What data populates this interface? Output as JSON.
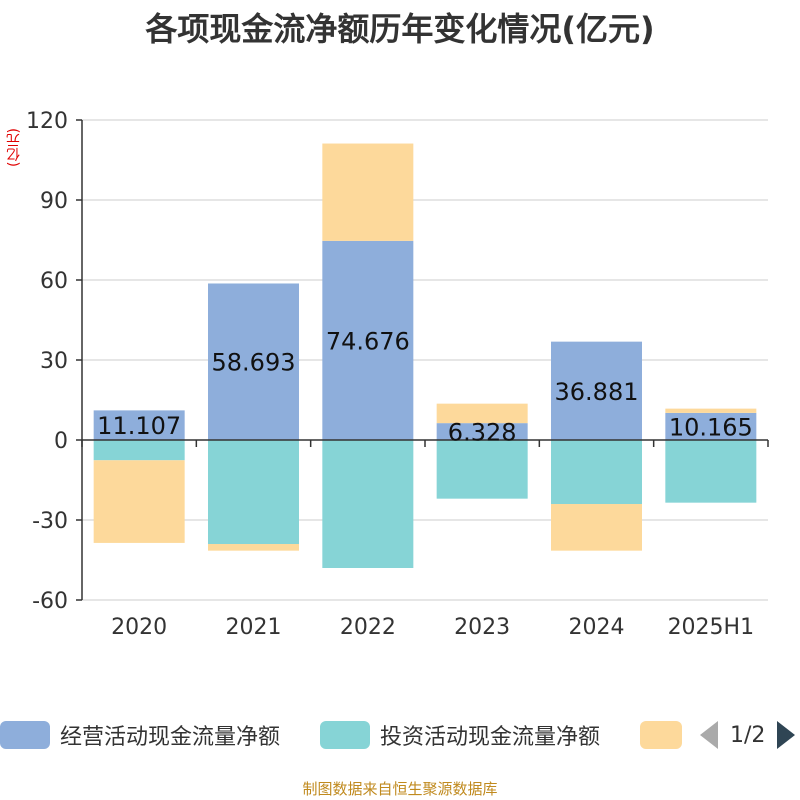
{
  "title": "各项现金流净额历年变化情况(亿元)",
  "unit_label": "(亿元)",
  "source_note": "制图数据来自恒生聚源数据库",
  "legend": {
    "items": [
      {
        "label": "经营活动现金流量净额",
        "color": "#8eaedb"
      },
      {
        "label": "投资活动现金流量净额",
        "color": "#86d4d6"
      },
      {
        "label": "",
        "color": "#fdd99b"
      }
    ],
    "pager_text": "1/2"
  },
  "chart_data": {
    "type": "bar",
    "stacked": true,
    "categories": [
      "2020",
      "2021",
      "2022",
      "2023",
      "2024",
      "2025H1"
    ],
    "ylim": [
      -60,
      120
    ],
    "yticks": [
      120,
      90,
      60,
      30,
      0,
      -30,
      -60
    ],
    "grid": true,
    "legend_position": "bottom",
    "series": [
      {
        "name": "经营活动现金流量净额",
        "color": "#8eaedb",
        "values": [
          11.107,
          58.693,
          74.676,
          6.328,
          36.881,
          10.165
        ],
        "labels": [
          "11.107",
          "58.693",
          "74.676",
          "6.328",
          "36.881",
          "10.165"
        ]
      },
      {
        "name": "投资活动现金流量净额",
        "color": "#86d4d6",
        "values": [
          -7.6,
          -39.0,
          -48.0,
          -22.0,
          -24.0,
          -23.5
        ]
      },
      {
        "color": "#fdd99b",
        "values": [
          -31.0,
          -2.5,
          36.5,
          7.3,
          -17.5,
          1.6
        ]
      }
    ]
  }
}
